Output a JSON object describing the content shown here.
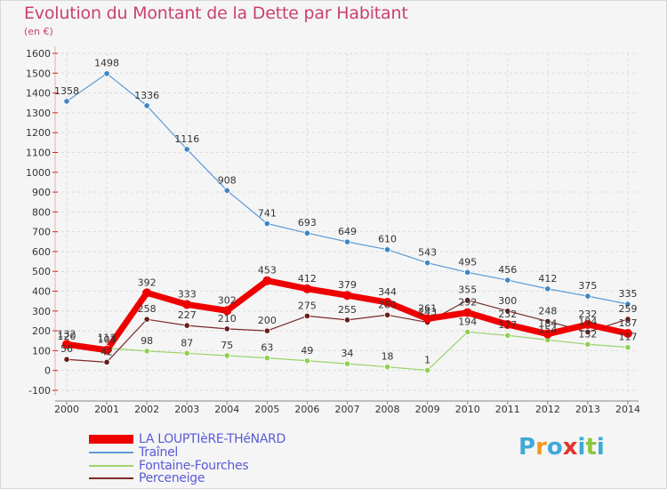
{
  "header": {
    "title": "Evolution du Montant de la Dette par Habitant",
    "unit": "(en €)"
  },
  "brand": {
    "letters": [
      "P",
      "r",
      "o",
      "x",
      "i",
      "t",
      "i"
    ],
    "colors": [
      "#3fa9d8",
      "#f29a1f",
      "#3fa9d8",
      "#e6332a",
      "#3fa9d8",
      "#8cc63f",
      "#3fa9d8"
    ]
  },
  "chart_data": {
    "type": "line",
    "title": "Evolution du Montant de la Dette par Habitant",
    "ylabel": "(en €)",
    "x": [
      "2000",
      "2001",
      "2002",
      "2003",
      "2004",
      "2005",
      "2006",
      "2007",
      "2008",
      "2009",
      "2010",
      "2011",
      "2012",
      "2013",
      "2014"
    ],
    "ylim": [
      -100,
      1600
    ],
    "yticks": [
      "-100",
      "0",
      "100",
      "200",
      "300",
      "400",
      "500",
      "600",
      "700",
      "800",
      "900",
      "1000",
      "1100",
      "1200",
      "1300",
      "1400",
      "1500",
      "1600"
    ],
    "grid": true,
    "legend_position": "bottom-left",
    "series": [
      {
        "name": "Traînel",
        "color": "#5b9bd5",
        "values": [
          1358,
          1498,
          1336,
          1116,
          908,
          741,
          693,
          649,
          610,
          543,
          495,
          456,
          412,
          375,
          335
        ],
        "labels": [
          "1358",
          "1498",
          "1336",
          "1116",
          "908",
          "741",
          "693",
          "649",
          "610",
          "543",
          "495",
          "456",
          "412",
          "375",
          "335"
        ]
      },
      {
        "name": "Fontaine-Fourches",
        "color": "#9ad36a",
        "values": [
          120,
          113,
          98,
          87,
          75,
          63,
          49,
          34,
          18,
          1,
          194,
          177,
          154,
          132,
          117
        ],
        "labels": [
          "120",
          "113",
          "98",
          "87",
          "75",
          "63",
          "49",
          "34",
          "18",
          "1",
          "194",
          "177",
          "154",
          "132",
          "117"
        ]
      },
      {
        "name": "Perceneige",
        "color": "#7a2a2a",
        "values": [
          56,
          42,
          258,
          227,
          210,
          200,
          275,
          255,
          280,
          243,
          355,
          300,
          248,
          194,
          259
        ],
        "labels": [
          "56",
          "42",
          "258",
          "227",
          "210",
          "200",
          "275",
          "255",
          "280",
          "243",
          "355",
          "300",
          "248",
          "194",
          "259"
        ]
      },
      {
        "name": "LA LOUPTIèRE-THéNARD",
        "color": "#ef0000",
        "values": [
          132,
          103,
          392,
          333,
          302,
          453,
          412,
          379,
          344,
          261,
          292,
          232,
          184,
          232,
          187
        ],
        "labels": [
          "132",
          "103",
          "392",
          "333",
          "302",
          "453",
          "412",
          "379",
          "344",
          "261",
          "292",
          "232",
          "184",
          "232",
          "187"
        ]
      }
    ]
  },
  "legend": [
    {
      "label": "LA LOUPTIèRE-THéNARD",
      "color": "#ef0000"
    },
    {
      "label": "Traînel",
      "color": "#5b9bd5"
    },
    {
      "label": "Fontaine-Fourches",
      "color": "#9ad36a"
    },
    {
      "label": "Perceneige",
      "color": "#7a2a2a"
    }
  ]
}
